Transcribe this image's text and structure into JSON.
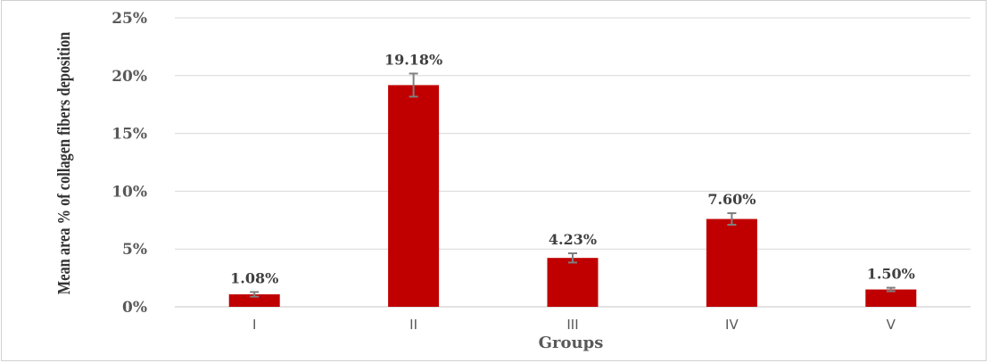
{
  "chart_data": {
    "type": "bar",
    "title": "",
    "xlabel": "Groups",
    "ylabel": "Mean area % of collagen fibers deposition",
    "categories": [
      "I",
      "II",
      "III",
      "IV",
      "V"
    ],
    "values": [
      1.08,
      19.18,
      4.23,
      7.6,
      1.5
    ],
    "value_labels": [
      "1.08%",
      "19.18%",
      "4.23%",
      "7.60%",
      "1.50%"
    ],
    "error": [
      0.2,
      1.0,
      0.4,
      0.5,
      0.15
    ],
    "ylim": [
      0,
      25
    ],
    "yticks": [
      0,
      5,
      10,
      15,
      20,
      25
    ],
    "ytick_labels": [
      "0%",
      "5%",
      "10%",
      "15%",
      "20%",
      "25%"
    ],
    "grid": true,
    "legend": "none",
    "colors": {
      "bar": "#c00000",
      "grid": "#d9d9d9",
      "error_bar": "#7f7f7f"
    }
  }
}
